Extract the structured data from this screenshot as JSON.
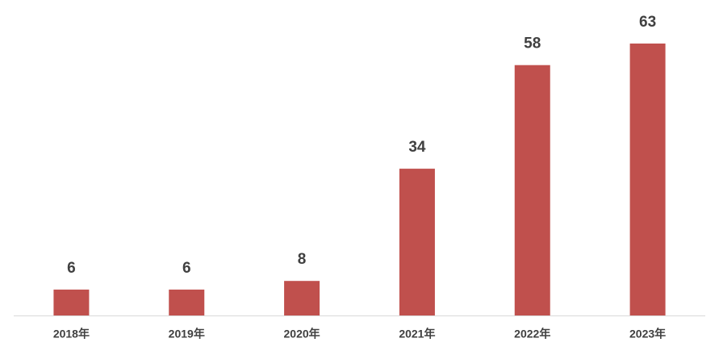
{
  "chart_data": {
    "type": "bar",
    "categories": [
      "2018年",
      "2019年",
      "2020年",
      "2021年",
      "2022年",
      "2023年"
    ],
    "values": [
      6,
      6,
      8,
      34,
      58,
      63
    ],
    "color": "#c0504d"
  }
}
